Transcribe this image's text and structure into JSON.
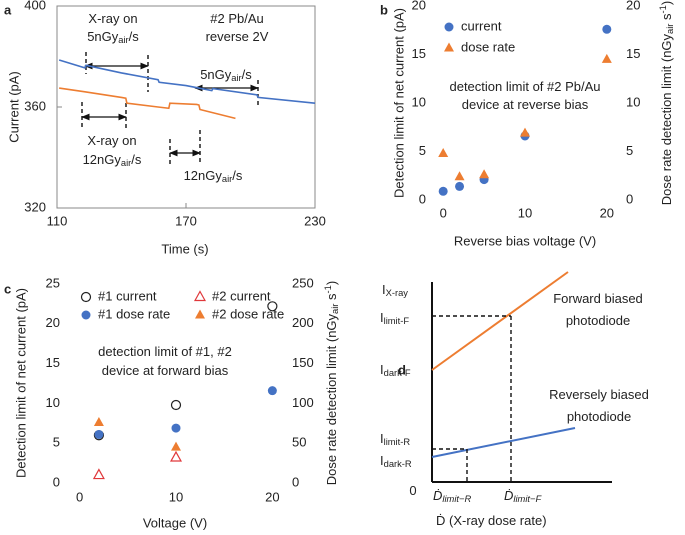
{
  "chart_data": [
    {
      "type": "line",
      "panel_label": "a",
      "xlabel": "Time (s)",
      "ylabel": "Current (pA)",
      "xlim": [
        110,
        230
      ],
      "ylim": [
        320,
        400
      ],
      "xticks": [
        110,
        170,
        230
      ],
      "yticks": [
        320,
        360,
        400
      ],
      "frame": true,
      "series": [
        {
          "color": "#4472c4",
          "x": [
            111,
            123,
            123.5,
            140,
            157,
            157.5,
            170,
            182,
            182.5,
            203,
            203.5,
            230
          ],
          "values": [
            378.6,
            375.5,
            376.5,
            373.5,
            370.8,
            369.8,
            368.5,
            366.5,
            367.3,
            364.8,
            363.8,
            361.5
          ]
        },
        {
          "color": "#ed7d31",
          "x": [
            111,
            123,
            140,
            142,
            142.5,
            157,
            162,
            162.5,
            175,
            176,
            176.5,
            193
          ],
          "values": [
            367.5,
            366,
            363.8,
            363.5,
            361.5,
            360,
            359.5,
            361.5,
            361,
            360.8,
            359,
            355.5
          ]
        }
      ],
      "annotations": [
        [
          "X-ray on"
        ],
        [
          "5nGy",
          {
            "sub": "air"
          },
          "/s"
        ],
        [
          "#2 Pb/Au"
        ],
        [
          "reverse 2V"
        ],
        [
          "5nGy",
          {
            "sub": "air"
          },
          "/s"
        ],
        [
          "X-ray on"
        ],
        [
          "12nGy",
          {
            "sub": "air"
          },
          "/s"
        ],
        [
          "12nGy",
          {
            "sub": "air"
          },
          "/s"
        ]
      ]
    },
    {
      "type": "scatter",
      "panel_label": "b",
      "xlabel": "Reverse bias voltage (V)",
      "ylabel": "Detection limit of net current (pA)",
      "y2label": [
        "Dose rate detection limit (nGy",
        {
          "sub": "air"
        },
        " s",
        {
          "sup": "-1"
        },
        ")"
      ],
      "xlim": [
        -1,
        21
      ],
      "ylim": [
        0,
        20
      ],
      "y2lim": [
        0,
        20
      ],
      "xticks": [
        0,
        10,
        20
      ],
      "yticks": [
        0,
        5,
        10,
        15,
        20
      ],
      "y2ticks": [
        0,
        5,
        10,
        15,
        20
      ],
      "series": [
        {
          "name": "current",
          "color": "#4472c4",
          "marker": "circle",
          "x": [
            0,
            2,
            5,
            10,
            20
          ],
          "values": [
            0.9,
            1.4,
            2.1,
            6.6,
            17.6
          ]
        },
        {
          "name": "dose rate",
          "color": "#ed7d31",
          "marker": "triangle",
          "axis": "y2",
          "x": [
            0,
            2,
            5,
            10,
            20
          ],
          "values": [
            4.8,
            2.4,
            2.6,
            6.9,
            14.5
          ]
        }
      ],
      "annotations": [
        [
          "detection limit of #2 Pb/Au"
        ],
        [
          "device at reverse bias"
        ]
      ]
    },
    {
      "type": "scatter",
      "panel_label": "c",
      "xlabel": "Voltage (V)",
      "ylabel": "Detection limit of net current (pA)",
      "y2label": [
        "Dose rate detection limit (nGy",
        {
          "sub": "air"
        },
        " s",
        {
          "sup": "-1"
        },
        ")"
      ],
      "xlim": [
        -1,
        21
      ],
      "ylim": [
        0,
        25
      ],
      "y2lim": [
        0,
        250
      ],
      "xticks": [
        0,
        10,
        20
      ],
      "yticks": [
        0,
        5,
        10,
        15,
        20,
        25
      ],
      "y2ticks": [
        0,
        50,
        100,
        150,
        200,
        250
      ],
      "series": [
        {
          "name": "#1 current",
          "color": "#222222",
          "marker": "circle-open",
          "x": [
            2,
            10,
            20
          ],
          "values": [
            6,
            9.8,
            22.2
          ]
        },
        {
          "name": "#2 current",
          "color": "#e0383b",
          "marker": "triangle-open",
          "x": [
            2,
            10
          ],
          "values": [
            1,
            3.2
          ]
        },
        {
          "name": "#1 dose rate",
          "color": "#4472c4",
          "marker": "circle",
          "axis": "y2",
          "x": [
            2,
            10,
            20
          ],
          "values": [
            61,
            69,
            116
          ]
        },
        {
          "name": "#2 dose rate",
          "color": "#ed7d31",
          "marker": "triangle",
          "axis": "y2",
          "x": [
            2,
            10
          ],
          "values": [
            76,
            45
          ]
        }
      ],
      "annotations": [
        [
          "detection limit of #1, #2"
        ],
        [
          "device at forward bias"
        ]
      ]
    },
    {
      "type": "schematic",
      "panel_label": "d",
      "labels": [
        {
          "text": [
            "I",
            {
              "sub": "X-ray"
            }
          ],
          "color": "#222222"
        },
        {
          "text": [
            "I",
            {
              "sub": "limit-F"
            }
          ],
          "color": "#ed7d31"
        },
        {
          "text": [
            "I",
            {
              "sub": "dark-F"
            }
          ],
          "color": "#ed7d31"
        },
        {
          "text": [
            "I",
            {
              "sub": "limit-R"
            }
          ],
          "color": "#4472c4"
        },
        {
          "text": [
            "I",
            {
              "sub": "dark-R"
            }
          ],
          "color": "#4472c4"
        },
        {
          "text": [
            "0"
          ],
          "color": "#222222"
        },
        {
          "text": [
            "Forward biased"
          ],
          "color": "#ed7d31"
        },
        {
          "text": [
            "photodiode"
          ],
          "color": "#ed7d31"
        },
        {
          "text": [
            "Reversely biased"
          ],
          "color": "#4472c4"
        },
        {
          "text": [
            "photodiode"
          ],
          "color": "#4472c4"
        },
        {
          "text": [
            "Ḋ",
            {
              "sub": "limit−R"
            }
          ],
          "color": "#4472c4"
        },
        {
          "text": [
            "Ḋ",
            {
              "sub": "limit−F"
            }
          ],
          "color": "#ed7d31"
        },
        {
          "text": [
            "Ḋ (X-ray dose rate)"
          ],
          "color": "#222222"
        }
      ],
      "lines": {
        "forward": "#ed7d31",
        "reverse": "#4472c4"
      }
    }
  ]
}
